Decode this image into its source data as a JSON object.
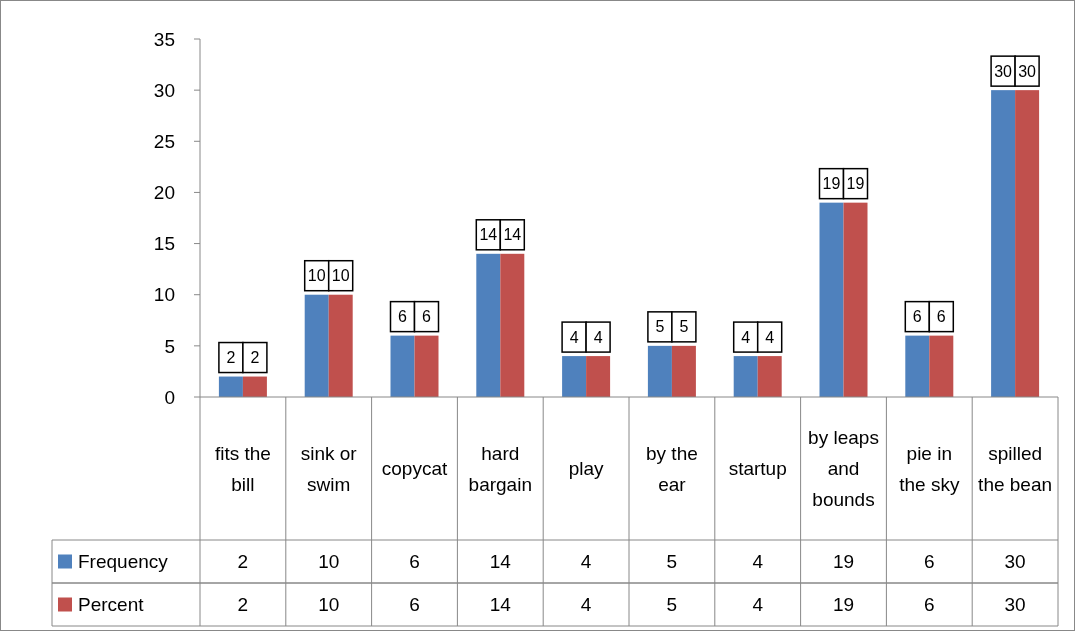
{
  "chart_data": {
    "type": "bar",
    "categories": [
      "fits the bill",
      "sink or swim",
      "copycat",
      "hard bargain",
      "play",
      "by the ear",
      "startup",
      "by leaps and bounds",
      "pie in the sky",
      "spilled the bean"
    ],
    "series": [
      {
        "name": "Frequency",
        "color": "#4f81bd",
        "values": [
          2,
          10,
          6,
          14,
          4,
          5,
          4,
          19,
          6,
          30
        ],
        "value_labels": [
          "2",
          "10",
          "6",
          "14",
          "4",
          "5",
          "4",
          "19",
          "6",
          "30"
        ]
      },
      {
        "name": "Percent",
        "color": "#c0504d",
        "values": [
          2,
          10,
          6,
          14,
          4,
          5,
          4,
          19,
          6,
          30
        ],
        "value_labels": [
          "2",
          "10",
          "6",
          "14",
          "4",
          "5",
          "4",
          "19",
          "6",
          "30"
        ]
      }
    ],
    "ylim": [
      0,
      35
    ],
    "yticks": [
      0,
      5,
      10,
      15,
      20,
      25,
      30,
      35
    ],
    "legend": "bottom",
    "annotations": [
      "2",
      "10",
      "6",
      "14",
      "4",
      "5",
      "4",
      "19",
      "6",
      "30",
      "2",
      "10",
      "6",
      "14",
      "4",
      "5",
      "4",
      "19",
      "6",
      "30"
    ]
  }
}
